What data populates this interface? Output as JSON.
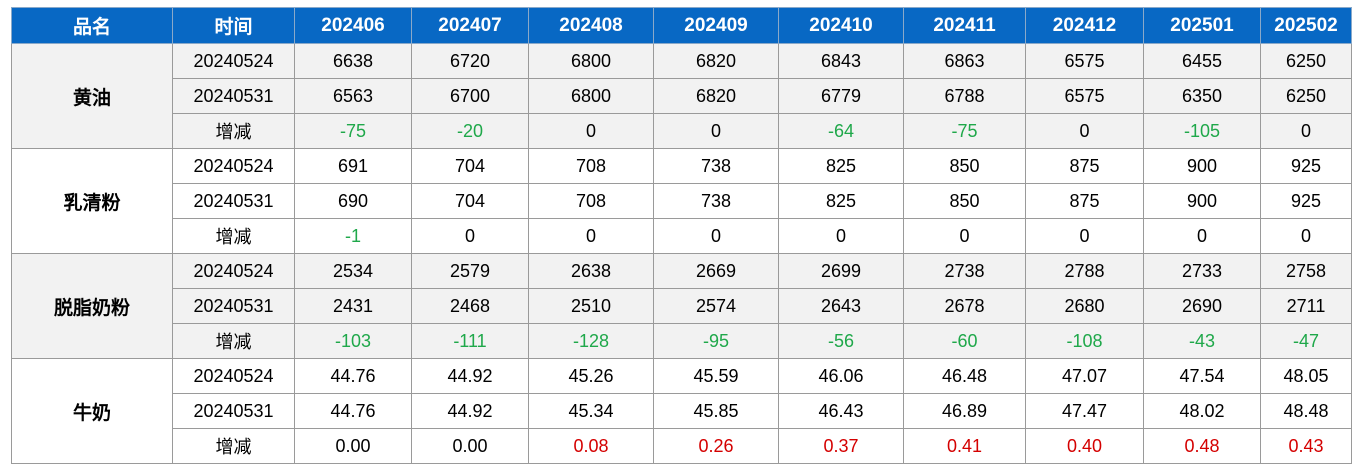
{
  "headers": [
    "品名",
    "时间",
    "202406",
    "202407",
    "202408",
    "202409",
    "202410",
    "202411",
    "202412",
    "202501",
    "202502"
  ],
  "groups": [
    {
      "product": "黄油",
      "shaded": true,
      "rows": [
        {
          "time": "20240524",
          "values": [
            "6638",
            "6720",
            "6800",
            "6820",
            "6843",
            "6863",
            "6575",
            "6455",
            "6250"
          ]
        },
        {
          "time": "20240531",
          "values": [
            "6563",
            "6700",
            "6800",
            "6820",
            "6779",
            "6788",
            "6575",
            "6350",
            "6250"
          ]
        },
        {
          "time": "增减",
          "change": true,
          "values": [
            "-75",
            "-20",
            "0",
            "0",
            "-64",
            "-75",
            "0",
            "-105",
            "0"
          ]
        }
      ]
    },
    {
      "product": "乳清粉",
      "shaded": false,
      "rows": [
        {
          "time": "20240524",
          "values": [
            "691",
            "704",
            "708",
            "738",
            "825",
            "850",
            "875",
            "900",
            "925"
          ]
        },
        {
          "time": "20240531",
          "values": [
            "690",
            "704",
            "708",
            "738",
            "825",
            "850",
            "875",
            "900",
            "925"
          ]
        },
        {
          "time": "增减",
          "change": true,
          "values": [
            "-1",
            "0",
            "0",
            "0",
            "0",
            "0",
            "0",
            "0",
            "0"
          ]
        }
      ]
    },
    {
      "product": "脱脂奶粉",
      "shaded": true,
      "rows": [
        {
          "time": "20240524",
          "values": [
            "2534",
            "2579",
            "2638",
            "2669",
            "2699",
            "2738",
            "2788",
            "2733",
            "2758"
          ]
        },
        {
          "time": "20240531",
          "values": [
            "2431",
            "2468",
            "2510",
            "2574",
            "2643",
            "2678",
            "2680",
            "2690",
            "2711"
          ]
        },
        {
          "time": "增减",
          "change": true,
          "values": [
            "-103",
            "-111",
            "-128",
            "-95",
            "-56",
            "-60",
            "-108",
            "-43",
            "-47"
          ]
        }
      ]
    },
    {
      "product": "牛奶",
      "shaded": false,
      "rows": [
        {
          "time": "20240524",
          "values": [
            "44.76",
            "44.92",
            "45.26",
            "45.59",
            "46.06",
            "46.48",
            "47.07",
            "47.54",
            "48.05"
          ]
        },
        {
          "time": "20240531",
          "values": [
            "44.76",
            "44.92",
            "45.34",
            "45.85",
            "46.43",
            "46.89",
            "47.47",
            "48.02",
            "48.48"
          ]
        },
        {
          "time": "增减",
          "change": true,
          "values": [
            "0.00",
            "0.00",
            "0.08",
            "0.26",
            "0.37",
            "0.41",
            "0.40",
            "0.48",
            "0.43"
          ]
        }
      ]
    }
  ],
  "colors": {
    "header_bg": "#0868c4",
    "negative": "#1fa84a",
    "positive": "#d40000",
    "shade": "#f2f2f2"
  }
}
